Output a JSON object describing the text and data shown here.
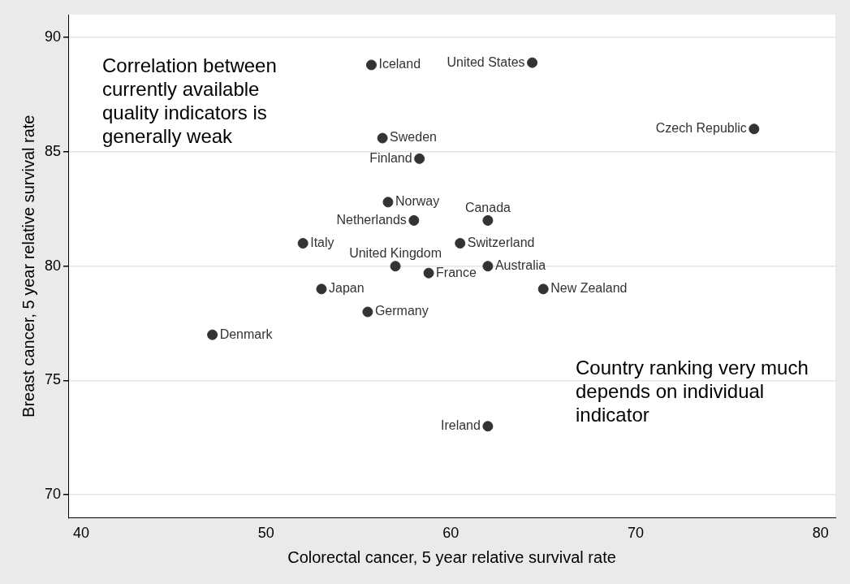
{
  "chart_data": {
    "type": "scatter",
    "xlabel": "Colorectal cancer, 5 year relative survival rate",
    "ylabel": "Breast cancer, 5 year relative survival rate",
    "x": [
      55.7,
      64.4,
      76.4,
      56.3,
      58.3,
      56.6,
      58.0,
      62.0,
      52.0,
      60.5,
      57.0,
      58.8,
      62.0,
      53.0,
      65.0,
      55.5,
      47.1,
      62.0
    ],
    "values": [
      88.8,
      88.9,
      86.0,
      85.6,
      84.7,
      82.8,
      82.0,
      82.0,
      81.0,
      81.0,
      80.0,
      79.7,
      80.0,
      79.0,
      79.0,
      78.0,
      77.0,
      73.0
    ],
    "value_labels": [
      "Iceland",
      "United States",
      "Czech Republic",
      "Sweden",
      "Finland",
      "Norway",
      "Netherlands",
      "Canada",
      "Italy",
      "Switzerland",
      "United Kingdom",
      "France",
      "Australia",
      "Japan",
      "New Zealand",
      "Germany",
      "Denmark",
      "Ireland"
    ],
    "color": "#333333",
    "marker": "circle",
    "grid": "y",
    "legend": false,
    "xlim": [
      39.3,
      80.8
    ],
    "ylim": [
      69,
      91
    ],
    "xticks": [
      40,
      50,
      60,
      70,
      80
    ],
    "yticks": [
      70,
      75,
      80,
      85,
      90
    ],
    "annotations": [
      "Correlation between currently available quality indicators is generally weak",
      "Country ranking very much depends on individual indicator"
    ]
  }
}
